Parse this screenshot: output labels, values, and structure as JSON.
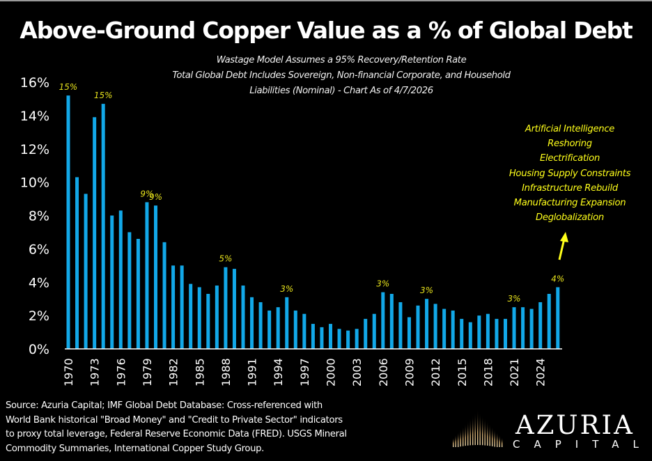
{
  "header": {
    "title": "Above-Ground Copper Value as a % of Global Debt",
    "subtitle_lines": [
      "Wastage Model Assumes a 95% Recovery/Retention Rate",
      "Total Global Debt Includes Sovereign, Non-financial Corporate, and Household",
      "Liabilities (Nominal) - Chart As of 4/7/2026"
    ]
  },
  "colors": {
    "background": "#000000",
    "bar": "#12a8e8",
    "data_label": "#e6e11c",
    "annotation": "#ffff1a",
    "axis": "#ffffff",
    "logo_gold": "#c9a46a"
  },
  "chart_data": {
    "type": "bar",
    "title": "Above-Ground Copper Value as a % of Global Debt",
    "xlabel": "",
    "ylabel": "",
    "ylim": [
      0,
      16
    ],
    "yticks": [
      "0%",
      "2%",
      "4%",
      "6%",
      "8%",
      "10%",
      "12%",
      "14%",
      "16%"
    ],
    "ytick_values": [
      0,
      2,
      4,
      6,
      8,
      10,
      12,
      14,
      16
    ],
    "grid": false,
    "categories": [
      1970,
      1971,
      1972,
      1973,
      1974,
      1975,
      1976,
      1977,
      1978,
      1979,
      1980,
      1981,
      1982,
      1983,
      1984,
      1985,
      1986,
      1987,
      1988,
      1989,
      1990,
      1991,
      1992,
      1993,
      1994,
      1995,
      1996,
      1997,
      1998,
      1999,
      2000,
      2001,
      2002,
      2003,
      2004,
      2005,
      2006,
      2007,
      2008,
      2009,
      2010,
      2011,
      2012,
      2013,
      2014,
      2015,
      2016,
      2017,
      2018,
      2019,
      2020,
      2021,
      2022,
      2023,
      2024,
      2025,
      2026
    ],
    "xtick_labels": [
      "1970",
      "1973",
      "1976",
      "1979",
      "1982",
      "1985",
      "1988",
      "1991",
      "1994",
      "1997",
      "2000",
      "2003",
      "2006",
      "2009",
      "2012",
      "2015",
      "2018",
      "2021",
      "2024"
    ],
    "series": [
      {
        "name": "Above-Ground Copper Value as % of Global Debt",
        "values": [
          15.2,
          10.3,
          9.3,
          13.9,
          14.7,
          8.0,
          8.3,
          7.0,
          6.6,
          8.8,
          8.6,
          6.4,
          5.0,
          5.0,
          3.9,
          3.7,
          3.3,
          3.8,
          4.9,
          4.8,
          3.8,
          3.1,
          2.8,
          2.3,
          2.5,
          3.1,
          2.3,
          2.1,
          1.5,
          1.3,
          1.5,
          1.2,
          1.1,
          1.2,
          1.8,
          2.1,
          3.4,
          3.3,
          2.8,
          1.9,
          2.6,
          3.0,
          2.7,
          2.4,
          2.3,
          1.8,
          1.6,
          2.0,
          2.1,
          1.8,
          1.8,
          2.5,
          2.5,
          2.4,
          2.8,
          3.3,
          3.7
        ]
      }
    ],
    "annotations": [
      {
        "year": 1970,
        "label": "15%"
      },
      {
        "year": 1974,
        "label": "15%"
      },
      {
        "year": 1979,
        "label": "9%"
      },
      {
        "year": 1980,
        "label": "9%"
      },
      {
        "year": 1988,
        "label": "5%"
      },
      {
        "year": 1995,
        "label": "3%"
      },
      {
        "year": 2006,
        "label": "3%"
      },
      {
        "year": 2011,
        "label": "3%"
      },
      {
        "year": 2021,
        "label": "3%"
      },
      {
        "year": 2026,
        "label": "4%"
      }
    ],
    "legend": "none"
  },
  "drivers": {
    "items": [
      "Artificial Intelligence",
      "Reshoring",
      "Electrification",
      "Housing Supply Constraints",
      "Infrastructure Rebuild",
      "Manufacturing Expansion",
      "Deglobalization"
    ],
    "arrow_icon": "arrow-up-icon"
  },
  "footer": {
    "source_lines": [
      "Source: Azuria Capital; IMF Global Debt Database: Cross-referenced with",
      "World Bank historical \"Broad Money\" and \"Credit to Private Sector\" indicators",
      "to proxy total leverage, Federal Reserve Economic Data (FRED). USGS Mineral",
      "Commodity Summaries, International Copper Study Group."
    ],
    "logo": {
      "name": "AZURIA",
      "tagline": "CAPITAL",
      "icon": "sunrise-rays-icon"
    }
  }
}
